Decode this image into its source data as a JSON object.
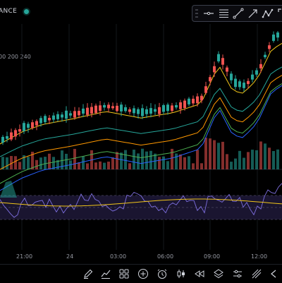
{
  "header": {
    "symbol_fragment": "ANCE",
    "live_color": "#26a69a"
  },
  "drawing_tools": [
    {
      "icon": "grip-icon"
    },
    {
      "icon": "horizontal-line-icon"
    },
    {
      "icon": "horizontal-ray-icon"
    },
    {
      "icon": "trend-line-icon"
    },
    {
      "icon": "arrow-line-icon"
    },
    {
      "icon": "zigzag-icon"
    },
    {
      "icon": "expand-icon"
    }
  ],
  "indicators": {
    "ma_label": "00 200 240",
    "ma_colors": [
      "#f0c419",
      "#26a69a",
      "#ff9800",
      "#4caf50",
      "#2962ff"
    ]
  },
  "colors": {
    "up": "#26a69a",
    "down": "#ef5350",
    "rsi_line": "#7e6fe0",
    "rsi_ma": "#f0c419",
    "rsi_band": "#1a1530"
  },
  "time_axis": [
    "21:00",
    "24",
    "03:00",
    "06:00",
    "09:00",
    "12:00"
  ],
  "bottom_toolbar": [
    {
      "icon": "pen-icon"
    },
    {
      "icon": "indicators-icon"
    },
    {
      "icon": "layout-grid-icon"
    },
    {
      "icon": "add-icon"
    },
    {
      "icon": "alarm-icon"
    },
    {
      "icon": "candles-icon"
    },
    {
      "icon": "replay-icon"
    },
    {
      "icon": "layers-icon"
    },
    {
      "icon": "settings-sliders-icon"
    },
    {
      "icon": "trend-icon"
    },
    {
      "icon": "share-icon"
    }
  ]
}
